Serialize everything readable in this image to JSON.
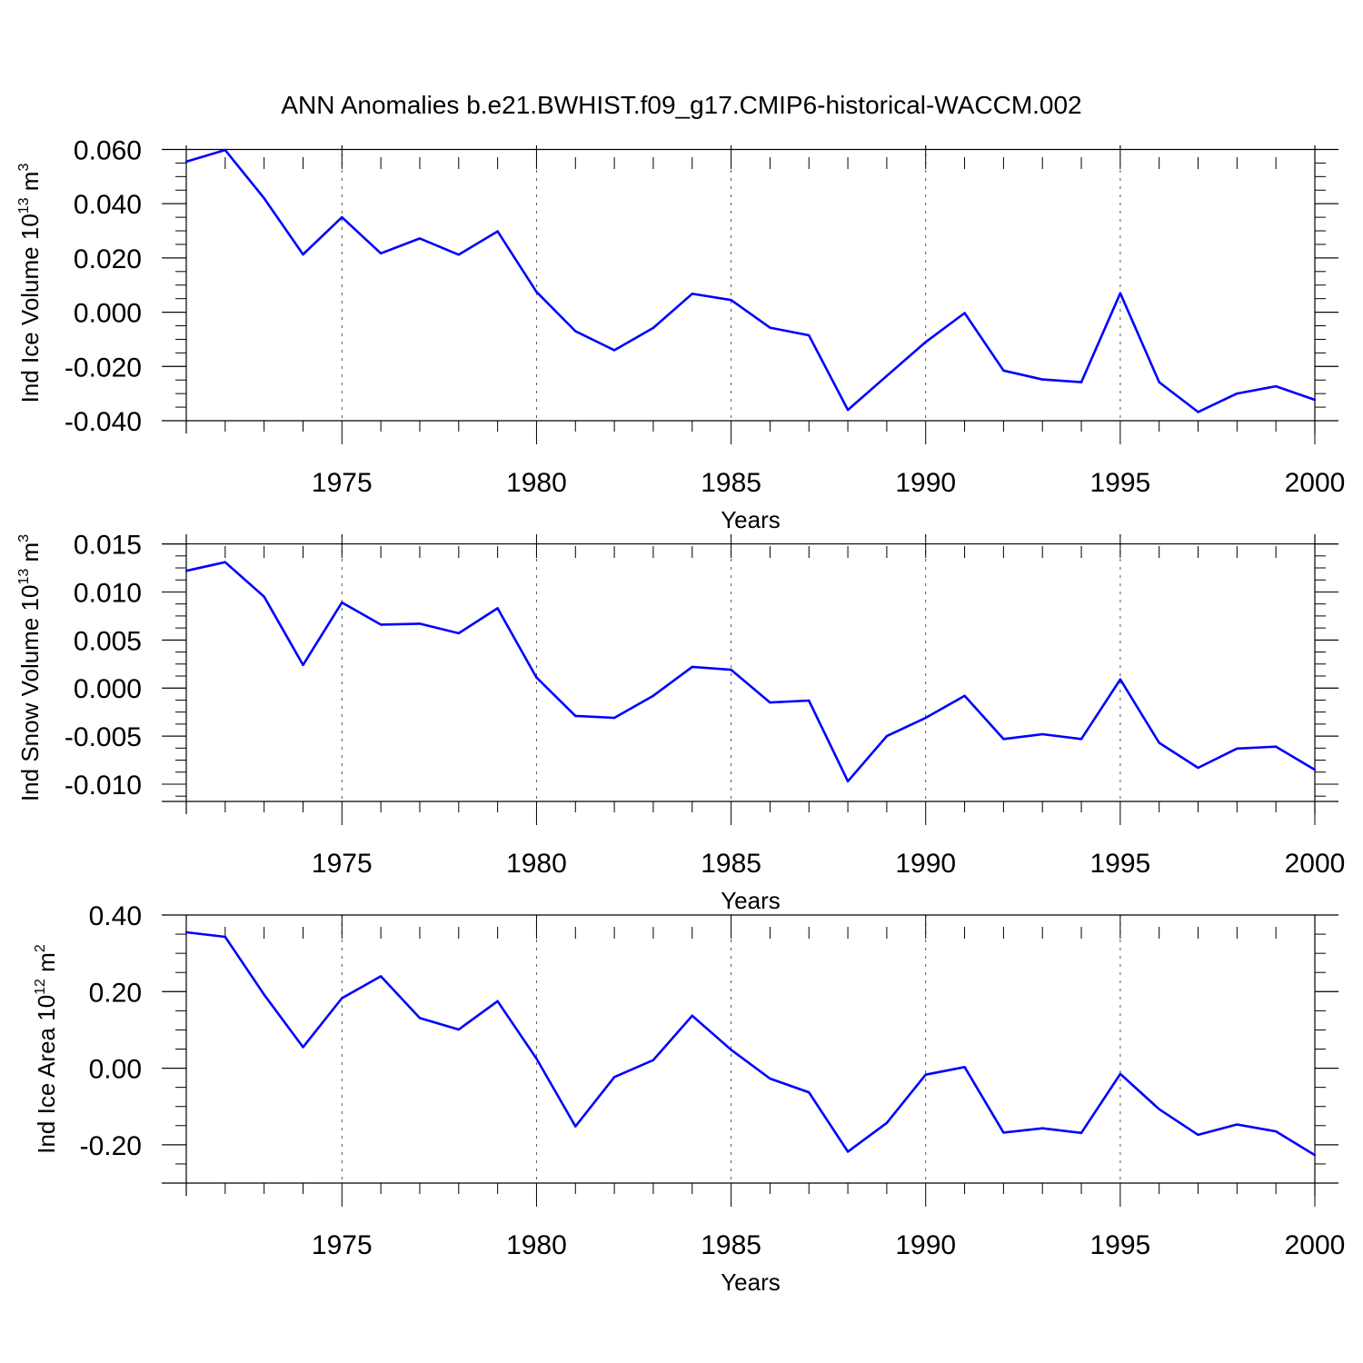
{
  "title": "ANN Anomalies b.e21.BWHIST.f09_g17.CMIP6-historical-WACCM.002",
  "colors": {
    "line": "#0000ff",
    "axis": "#000000",
    "grid": "#555555",
    "background": "#ffffff"
  },
  "chart_data": [
    {
      "type": "line",
      "xlabel": "Years",
      "ylabel": {
        "text": "Ind Ice Volume 10",
        "sup": "13",
        "unit": " m",
        "unit_sup": "3"
      },
      "xlim": [
        1971,
        2000
      ],
      "ylim": [
        -0.04,
        0.0615
      ],
      "yticks": [
        0.06,
        0.04,
        0.02,
        0.0,
        -0.02,
        -0.04
      ],
      "ytick_labels": [
        "0.060",
        "0.040",
        "0.020",
        "0.000",
        "-0.020",
        "-0.040"
      ],
      "xticks": [
        1975,
        1980,
        1985,
        1990,
        1995,
        2000
      ],
      "xtick_labels": [
        "1975",
        "1980",
        "1985",
        "1990",
        "1995",
        "2000"
      ],
      "grid": "vertical dashed at major x ticks",
      "x": [
        1971,
        1972,
        1973,
        1974,
        1975,
        1976,
        1977,
        1978,
        1979,
        1980,
        1981,
        1982,
        1983,
        1984,
        1985,
        1986,
        1987,
        1988,
        1989,
        1990,
        1991,
        1992,
        1993,
        1994,
        1995,
        1996,
        1997,
        1998,
        1999,
        2000
      ],
      "series": [
        {
          "values": [
            0.0555,
            0.0598,
            0.042,
            0.0213,
            0.035,
            0.0217,
            0.0272,
            0.0212,
            0.0298,
            0.0075,
            -0.007,
            -0.014,
            -0.0058,
            0.0068,
            0.0045,
            -0.0057,
            -0.0085,
            -0.036,
            -0.0235,
            -0.011,
            -0.0003,
            -0.0215,
            -0.0248,
            -0.0258,
            0.007,
            -0.0258,
            -0.0368,
            -0.03,
            -0.0273,
            -0.0323
          ]
        }
      ]
    },
    {
      "type": "line",
      "xlabel": "Years",
      "ylabel": {
        "text": "Ind Snow Volume 10",
        "sup": "13",
        "unit": " m",
        "unit_sup": "3"
      },
      "xlim": [
        1971,
        2000
      ],
      "ylim": [
        -0.0118,
        0.016
      ],
      "yticks": [
        0.015,
        0.01,
        0.005,
        0.0,
        -0.005,
        -0.01
      ],
      "ytick_labels": [
        "0.015",
        "0.010",
        "0.005",
        "0.000",
        "-0.005",
        "-0.010"
      ],
      "xticks": [
        1975,
        1980,
        1985,
        1990,
        1995,
        2000
      ],
      "xtick_labels": [
        "1975",
        "1980",
        "1985",
        "1990",
        "1995",
        "2000"
      ],
      "grid": "vertical dashed at major x ticks",
      "x": [
        1971,
        1972,
        1973,
        1974,
        1975,
        1976,
        1977,
        1978,
        1979,
        1980,
        1981,
        1982,
        1983,
        1984,
        1985,
        1986,
        1987,
        1988,
        1989,
        1990,
        1991,
        1992,
        1993,
        1994,
        1995,
        1996,
        1997,
        1998,
        1999,
        2000
      ],
      "series": [
        {
          "values": [
            0.0122,
            0.0131,
            0.0095,
            0.0024,
            0.0089,
            0.0066,
            0.0067,
            0.0057,
            0.0083,
            0.0011,
            -0.0029,
            -0.0031,
            -0.0008,
            0.0022,
            0.0019,
            -0.0015,
            -0.0013,
            -0.0097,
            -0.005,
            -0.0031,
            -0.0008,
            -0.0053,
            -0.0048,
            -0.0053,
            0.0009,
            -0.0057,
            -0.0083,
            -0.0063,
            -0.0061,
            -0.0085
          ]
        }
      ]
    },
    {
      "type": "line",
      "xlabel": "Years",
      "ylabel": {
        "text": "Ind Ice Area 10",
        "sup": "12",
        "unit": " m",
        "unit_sup": "2"
      },
      "xlim": [
        1971,
        2000
      ],
      "ylim": [
        -0.3,
        0.4
      ],
      "yticks": [
        0.4,
        0.2,
        0.0,
        -0.2
      ],
      "ytick_labels": [
        "0.40",
        "0.20",
        "0.00",
        "-0.20"
      ],
      "xticks": [
        1975,
        1980,
        1985,
        1990,
        1995,
        2000
      ],
      "xtick_labels": [
        "1975",
        "1980",
        "1985",
        "1990",
        "1995",
        "2000"
      ],
      "grid": "vertical dashed at major x ticks",
      "x": [
        1971,
        1972,
        1973,
        1974,
        1975,
        1976,
        1977,
        1978,
        1979,
        1980,
        1981,
        1982,
        1983,
        1984,
        1985,
        1986,
        1987,
        1988,
        1989,
        1990,
        1991,
        1992,
        1993,
        1994,
        1995,
        1996,
        1997,
        1998,
        1999,
        2000
      ],
      "series": [
        {
          "values": [
            0.355,
            0.343,
            0.192,
            0.055,
            0.183,
            0.24,
            0.131,
            0.101,
            0.175,
            0.025,
            -0.152,
            -0.023,
            0.021,
            0.137,
            0.048,
            -0.027,
            -0.063,
            -0.218,
            -0.143,
            -0.017,
            0.003,
            -0.168,
            -0.157,
            -0.169,
            -0.015,
            -0.107,
            -0.174,
            -0.147,
            -0.165,
            -0.227
          ]
        }
      ]
    }
  ]
}
